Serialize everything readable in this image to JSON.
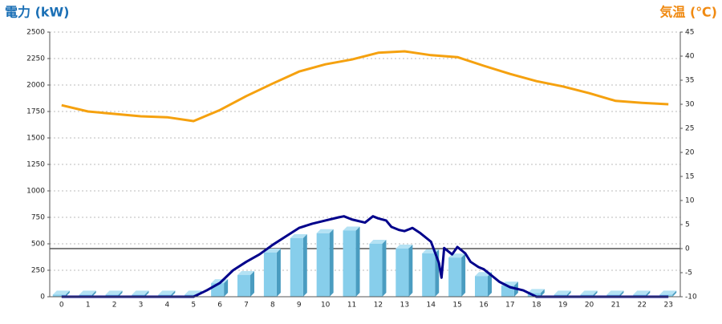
{
  "chart_data": {
    "type": "combo",
    "y_label": "電力 (kW)",
    "y2_label": "気温 (℃)",
    "categories": [
      "0",
      "1",
      "2",
      "3",
      "4",
      "5",
      "6",
      "7",
      "8",
      "9",
      "10",
      "11",
      "12",
      "13",
      "14",
      "15",
      "16",
      "17",
      "18",
      "19",
      "20",
      "21",
      "22",
      "23"
    ],
    "xlim": [
      -0.45,
      23.45
    ],
    "ylim": [
      0,
      2500
    ],
    "yticks": [
      0,
      250,
      500,
      750,
      1000,
      1250,
      1500,
      1750,
      2000,
      2250,
      2500
    ],
    "y2lim": [
      -10,
      45
    ],
    "y2ticks": [
      -10,
      -5,
      0,
      5,
      10,
      15,
      20,
      25,
      30,
      35,
      40,
      45
    ],
    "grid": true,
    "series": [
      {
        "type": "bar",
        "color": "#87ceeb",
        "values": [
          20,
          20,
          20,
          20,
          20,
          20,
          128,
          205,
          417,
          553,
          600,
          625,
          500,
          455,
          410,
          370,
          195,
          105,
          35,
          20,
          20,
          20,
          20,
          20
        ]
      },
      {
        "type": "line",
        "color": "#00008b",
        "x": [
          0,
          1,
          2,
          3,
          4,
          5,
          5.5,
          6,
          6.5,
          7,
          7.5,
          8,
          8.5,
          9,
          9.5,
          10,
          10.5,
          10.7,
          11,
          11.5,
          11.8,
          12,
          12.3,
          12.5,
          12.8,
          13,
          13.3,
          13.6,
          14,
          14.3,
          14.4,
          14.5,
          14.8,
          15,
          15.3,
          15.5,
          15.8,
          16,
          16.3,
          16.6,
          17,
          17.5,
          18,
          19,
          20,
          21,
          22,
          23
        ],
        "values": [
          0,
          0,
          0,
          0,
          0,
          0,
          60,
          130,
          250,
          330,
          400,
          490,
          570,
          650,
          690,
          720,
          750,
          760,
          730,
          700,
          760,
          740,
          720,
          660,
          630,
          620,
          650,
          600,
          520,
          320,
          180,
          460,
          400,
          470,
          410,
          330,
          280,
          260,
          200,
          140,
          90,
          60,
          0,
          0,
          0,
          0,
          0,
          0
        ]
      },
      {
        "type": "line",
        "color": "#f5a10f",
        "axis": "y2",
        "values": [
          29.8,
          28.5,
          28,
          27.5,
          27.3,
          26.5,
          28.8,
          31.7,
          34.3,
          36.8,
          38.3,
          39.3,
          40.7,
          41,
          40.2,
          39.8,
          38,
          36.3,
          34.8,
          33.7,
          32.3,
          30.7,
          30.3,
          30
        ]
      }
    ]
  }
}
